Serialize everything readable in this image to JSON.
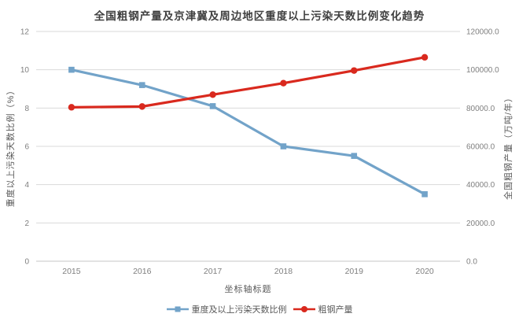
{
  "chart_data": {
    "type": "line",
    "title": "全国粗钢产量及京津冀及周边地区重度以上污染天数比例变化趋势",
    "categories": [
      "2015",
      "2016",
      "2017",
      "2018",
      "2019",
      "2020"
    ],
    "series": [
      {
        "name": "重度及以上污染天数比例",
        "axis": "left",
        "marker": "square",
        "color": "#72A3C9",
        "values": [
          10.0,
          9.2,
          8.1,
          6.0,
          5.5,
          3.5
        ]
      },
      {
        "name": "粗钢产量",
        "axis": "right",
        "marker": "circle",
        "color": "#D9291E",
        "values": [
          80400,
          80800,
          87000,
          93000,
          99600,
          106500
        ]
      }
    ],
    "xlabel": "坐标轴标题",
    "y_left": {
      "label": "重度以上污染天数比例（%）",
      "min": 0,
      "max": 12,
      "step": 2,
      "tick_labels": [
        "0",
        "2",
        "4",
        "6",
        "8",
        "10",
        "12"
      ]
    },
    "y_right": {
      "label": "全国粗钢产量（万吨/年）",
      "min": 0,
      "max": 120000,
      "step": 20000,
      "tick_labels": [
        "0.0",
        "20000.0",
        "40000.0",
        "60000.0",
        "80000.0",
        "100000.0",
        "120000.0"
      ]
    },
    "grid": true,
    "legend_position": "bottom",
    "colors": {
      "grid": "#D9D9D9",
      "axis_line": "#C6C6C6",
      "tick_text": "#7F7F7F",
      "axis_title_text": "#595959",
      "title_text": "#3F3F3F",
      "background": "#FFFFFF"
    }
  }
}
